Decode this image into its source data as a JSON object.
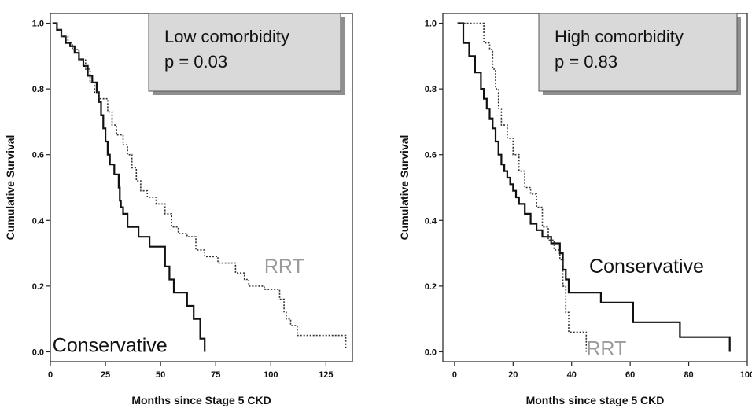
{
  "chart_data": [
    {
      "type": "line",
      "subtype": "kaplan-meier",
      "title": "",
      "xlabel": "Months since Stage 5 CKD",
      "ylabel": "Cumulative Survival",
      "xlim": [
        0,
        137
      ],
      "ylim": [
        -0.03,
        1.03
      ],
      "xticks": [
        0,
        25,
        50,
        75,
        100,
        125
      ],
      "yticks": [
        "0.0",
        "0.2",
        "0.4",
        "0.6",
        "0.8",
        "1.0"
      ],
      "grid": false,
      "legend": {
        "placement": "top-right",
        "lines": [
          "Low comorbidity",
          "p = 0.03"
        ]
      },
      "series": [
        {
          "name": "Conservative",
          "style": "solid",
          "label_color": "#111111",
          "points": [
            [
              1,
              1.0
            ],
            [
              3,
              0.98
            ],
            [
              5,
              0.96
            ],
            [
              7,
              0.94
            ],
            [
              9,
              0.93
            ],
            [
              11,
              0.91
            ],
            [
              13,
              0.89
            ],
            [
              15,
              0.87
            ],
            [
              17,
              0.84
            ],
            [
              19,
              0.82
            ],
            [
              21,
              0.79
            ],
            [
              22,
              0.76
            ],
            [
              23,
              0.72
            ],
            [
              24,
              0.68
            ],
            [
              25,
              0.64
            ],
            [
              26,
              0.6
            ],
            [
              27,
              0.57
            ],
            [
              29,
              0.54
            ],
            [
              31,
              0.5
            ],
            [
              31.5,
              0.46
            ],
            [
              32,
              0.44
            ],
            [
              33,
              0.42
            ],
            [
              35,
              0.38
            ],
            [
              40,
              0.35
            ],
            [
              45,
              0.32
            ],
            [
              50,
              0.32
            ],
            [
              52,
              0.26
            ],
            [
              54,
              0.22
            ],
            [
              56,
              0.18
            ],
            [
              62,
              0.14
            ],
            [
              65,
              0.1
            ],
            [
              68,
              0.04
            ],
            [
              70,
              0.0
            ]
          ]
        },
        {
          "name": "RRT",
          "style": "dotted",
          "label_color": "#9a9a9a",
          "points": [
            [
              1,
              1.0
            ],
            [
              3,
              0.98
            ],
            [
              5,
              0.96
            ],
            [
              8,
              0.94
            ],
            [
              10,
              0.92
            ],
            [
              13,
              0.89
            ],
            [
              16,
              0.86
            ],
            [
              18,
              0.82
            ],
            [
              20,
              0.79
            ],
            [
              22,
              0.77
            ],
            [
              26,
              0.73
            ],
            [
              28,
              0.69
            ],
            [
              30,
              0.66
            ],
            [
              33,
              0.63
            ],
            [
              35,
              0.6
            ],
            [
              37,
              0.56
            ],
            [
              39,
              0.52
            ],
            [
              41,
              0.49
            ],
            [
              44,
              0.47
            ],
            [
              48,
              0.45
            ],
            [
              52,
              0.42
            ],
            [
              55,
              0.38
            ],
            [
              58,
              0.36
            ],
            [
              62,
              0.35
            ],
            [
              66,
              0.31
            ],
            [
              70,
              0.29
            ],
            [
              76,
              0.27
            ],
            [
              84,
              0.24
            ],
            [
              88,
              0.22
            ],
            [
              90,
              0.2
            ],
            [
              97,
              0.19
            ],
            [
              104,
              0.16
            ],
            [
              106,
              0.12
            ],
            [
              107,
              0.1
            ],
            [
              109,
              0.08
            ],
            [
              112,
              0.05
            ],
            [
              120,
              0.05
            ],
            [
              133,
              0.05
            ],
            [
              134,
              0.01
            ]
          ]
        }
      ],
      "annotations": [
        {
          "text": "RRT",
          "x": 97,
          "y": 0.24,
          "color": "#9a9a9a"
        },
        {
          "text": "Conservative",
          "x": 1,
          "y": 0.0,
          "color": "#111111"
        }
      ]
    },
    {
      "type": "line",
      "subtype": "kaplan-meier",
      "title": "",
      "xlabel": "Months since stage 5 CKD",
      "ylabel": "Cumulative Survival",
      "xlim": [
        -4,
        100
      ],
      "ylim": [
        -0.03,
        1.03
      ],
      "xticks": [
        0,
        20,
        40,
        60,
        80,
        100
      ],
      "yticks": [
        "0.0",
        "0.2",
        "0.4",
        "0.6",
        "0.8",
        "1.0"
      ],
      "grid": false,
      "legend": {
        "placement": "top-right",
        "lines": [
          "High comorbidity",
          "p = 0.83"
        ]
      },
      "series": [
        {
          "name": "Conservative",
          "style": "solid",
          "label_color": "#111111",
          "points": [
            [
              1,
              1.0
            ],
            [
              3,
              0.94
            ],
            [
              5,
              0.9
            ],
            [
              7,
              0.85
            ],
            [
              9,
              0.8
            ],
            [
              10,
              0.77
            ],
            [
              11,
              0.74
            ],
            [
              12,
              0.71
            ],
            [
              13,
              0.68
            ],
            [
              14,
              0.64
            ],
            [
              15,
              0.6
            ],
            [
              16,
              0.57
            ],
            [
              17,
              0.55
            ],
            [
              18,
              0.53
            ],
            [
              19,
              0.51
            ],
            [
              20,
              0.49
            ],
            [
              21,
              0.47
            ],
            [
              22,
              0.45
            ],
            [
              24,
              0.42
            ],
            [
              26,
              0.39
            ],
            [
              28,
              0.37
            ],
            [
              30,
              0.35
            ],
            [
              33,
              0.33
            ],
            [
              36,
              0.3
            ],
            [
              37,
              0.25
            ],
            [
              38,
              0.22
            ],
            [
              39,
              0.18
            ],
            [
              48,
              0.18
            ],
            [
              50,
              0.15
            ],
            [
              58,
              0.15
            ],
            [
              61,
              0.09
            ],
            [
              75,
              0.09
            ],
            [
              77,
              0.045
            ],
            [
              92,
              0.045
            ],
            [
              94,
              0.0
            ]
          ]
        },
        {
          "name": "RRT",
          "style": "dotted",
          "label_color": "#9a9a9a",
          "points": [
            [
              1,
              1.0
            ],
            [
              8,
              1.0
            ],
            [
              10,
              0.94
            ],
            [
              12,
              0.92
            ],
            [
              13,
              0.86
            ],
            [
              14,
              0.8
            ],
            [
              15,
              0.74
            ],
            [
              16,
              0.69
            ],
            [
              18,
              0.65
            ],
            [
              20,
              0.6
            ],
            [
              22,
              0.55
            ],
            [
              24,
              0.5
            ],
            [
              26,
              0.48
            ],
            [
              28,
              0.44
            ],
            [
              30,
              0.38
            ],
            [
              32,
              0.34
            ],
            [
              34,
              0.31
            ],
            [
              36,
              0.28
            ],
            [
              37,
              0.2
            ],
            [
              38,
              0.12
            ],
            [
              39,
              0.06
            ],
            [
              44,
              0.06
            ],
            [
              45,
              0.0
            ]
          ]
        }
      ],
      "annotations": [
        {
          "text": "Conservative",
          "x": 46,
          "y": 0.24,
          "color": "#111111"
        },
        {
          "text": "RRT",
          "x": 45,
          "y": -0.01,
          "color": "#9a9a9a"
        }
      ]
    }
  ]
}
